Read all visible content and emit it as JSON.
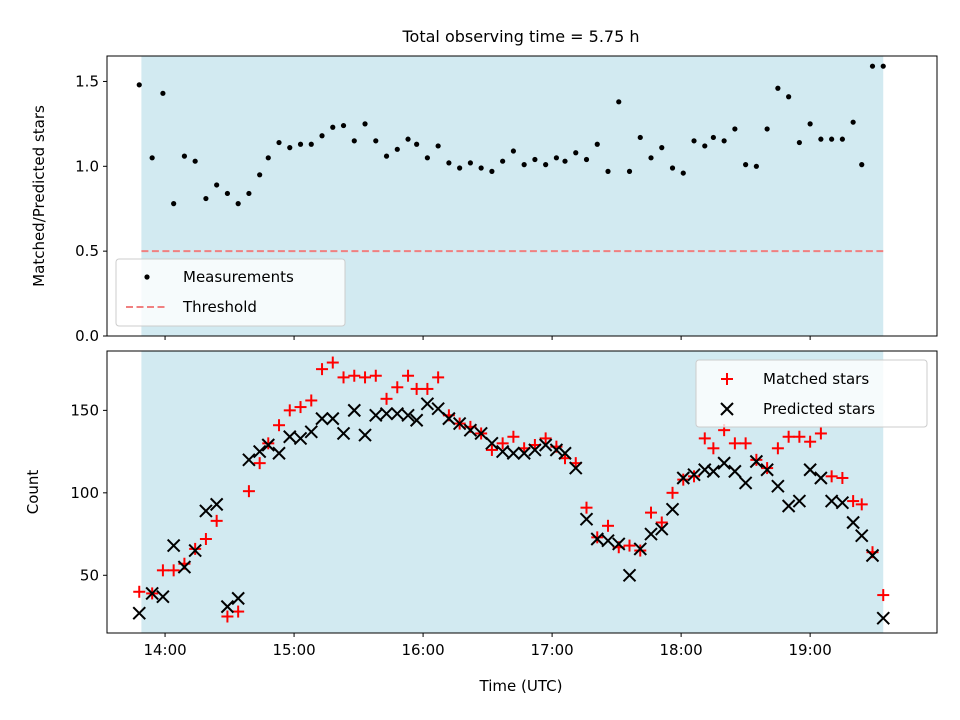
{
  "figure_title": "Total observing time = 5.75 h",
  "chart_data": [
    {
      "type": "scatter",
      "title": "Total observing time = 5.75 h",
      "ylabel": "Matched/Predicted stars",
      "xlabel": "",
      "ylim": [
        0,
        1.65
      ],
      "yticks": [
        0.0,
        0.5,
        1.0,
        1.5
      ],
      "ytick_labels": [
        "0.0",
        "0.5",
        "1.0",
        "1.5"
      ],
      "observing_window": [
        "13:49",
        "19:34"
      ],
      "legend": {
        "placement": "lower-left",
        "entries": [
          "Measurements",
          "Threshold"
        ]
      },
      "threshold": {
        "name": "Threshold",
        "value": 0.5,
        "color": "#f08080",
        "style": "dashed"
      },
      "series": [
        {
          "name": "Measurements",
          "color": "#000000",
          "x": [
            "13:48",
            "13:54",
            "13:59",
            "14:04",
            "14:09",
            "14:14",
            "14:19",
            "14:24",
            "14:29",
            "14:34",
            "14:39",
            "14:44",
            "14:48",
            "14:53",
            "14:58",
            "15:03",
            "15:08",
            "15:13",
            "15:18",
            "15:23",
            "15:28",
            "15:33",
            "15:38",
            "15:43",
            "15:48",
            "15:53",
            "15:57",
            "16:02",
            "16:07",
            "16:12",
            "16:17",
            "16:22",
            "16:27",
            "16:32",
            "16:37",
            "16:42",
            "16:47",
            "16:52",
            "16:57",
            "17:02",
            "17:06",
            "17:11",
            "17:16",
            "17:21",
            "17:26",
            "17:31",
            "17:36",
            "17:41",
            "17:46",
            "17:51",
            "17:56",
            "18:01",
            "18:06",
            "18:11",
            "18:15",
            "18:20",
            "18:25",
            "18:30",
            "18:35",
            "18:40",
            "18:45",
            "18:50",
            "18:55",
            "19:00",
            "19:05",
            "19:10",
            "19:15",
            "19:20",
            "19:24",
            "19:29",
            "19:34"
          ],
          "y": [
            1.48,
            1.05,
            1.43,
            0.78,
            1.06,
            1.03,
            0.81,
            0.89,
            0.84,
            0.78,
            0.84,
            0.95,
            1.05,
            1.14,
            1.11,
            1.13,
            1.13,
            1.18,
            1.23,
            1.24,
            1.15,
            1.25,
            1.15,
            1.06,
            1.1,
            1.16,
            1.13,
            1.05,
            1.12,
            1.02,
            0.99,
            1.02,
            0.99,
            0.97,
            1.03,
            1.09,
            1.01,
            1.04,
            1.01,
            1.05,
            1.03,
            1.08,
            1.04,
            1.13,
            0.97,
            1.38,
            0.97,
            1.17,
            1.05,
            1.11,
            0.99,
            0.96,
            1.15,
            1.12,
            1.17,
            1.15,
            1.22,
            1.01,
            1.0,
            1.22,
            1.46,
            1.41,
            1.14,
            1.25,
            1.16,
            1.16,
            1.16,
            1.26,
            1.01,
            1.59,
            1.59
          ]
        }
      ]
    },
    {
      "type": "scatter",
      "title": "",
      "ylabel": "Count",
      "xlabel": "Time (UTC)",
      "xlim": [
        "13:33",
        "19:59"
      ],
      "xticks": [
        "14:00",
        "15:00",
        "16:00",
        "17:00",
        "18:00",
        "19:00"
      ],
      "ylim": [
        15,
        186
      ],
      "yticks": [
        50,
        100,
        150
      ],
      "ytick_labels": [
        "50",
        "100",
        "150"
      ],
      "observing_window": [
        "13:49",
        "19:34"
      ],
      "legend": {
        "placement": "top-right",
        "entries": [
          "Matched stars",
          "Predicted stars"
        ]
      },
      "series": [
        {
          "name": "Matched stars",
          "marker": "plus",
          "color": "#ff0000",
          "x": [
            "13:48",
            "13:54",
            "13:59",
            "14:04",
            "14:09",
            "14:14",
            "14:19",
            "14:24",
            "14:29",
            "14:34",
            "14:39",
            "14:44",
            "14:48",
            "14:53",
            "14:58",
            "15:03",
            "15:08",
            "15:13",
            "15:18",
            "15:23",
            "15:28",
            "15:33",
            "15:38",
            "15:43",
            "15:48",
            "15:53",
            "15:57",
            "16:02",
            "16:07",
            "16:12",
            "16:17",
            "16:22",
            "16:27",
            "16:32",
            "16:37",
            "16:42",
            "16:47",
            "16:52",
            "16:57",
            "17:02",
            "17:06",
            "17:11",
            "17:16",
            "17:21",
            "17:26",
            "17:31",
            "17:36",
            "17:41",
            "17:46",
            "17:51",
            "17:56",
            "18:01",
            "18:06",
            "18:11",
            "18:15",
            "18:20",
            "18:25",
            "18:30",
            "18:35",
            "18:40",
            "18:45",
            "18:50",
            "18:55",
            "19:00",
            "19:05",
            "19:10",
            "19:15",
            "19:20",
            "19:24",
            "19:29",
            "19:34"
          ],
          "y": [
            40,
            39,
            53,
            53,
            57,
            66,
            72,
            83,
            25,
            28,
            101,
            118,
            130,
            141,
            150,
            152,
            156,
            175,
            179,
            170,
            171,
            170,
            171,
            157,
            164,
            171,
            163,
            163,
            170,
            147,
            142,
            140,
            136,
            126,
            130,
            134,
            127,
            129,
            133,
            128,
            121,
            118,
            91,
            73,
            80,
            67,
            68,
            65,
            88,
            82,
            100,
            108,
            110,
            133,
            127,
            138,
            130,
            130,
            120,
            115,
            127,
            134,
            134,
            131,
            136,
            110,
            109,
            95,
            93,
            64,
            38
          ]
        },
        {
          "name": "Predicted stars",
          "marker": "x",
          "color": "#000000",
          "x": [
            "13:48",
            "13:54",
            "13:59",
            "14:04",
            "14:09",
            "14:14",
            "14:19",
            "14:24",
            "14:29",
            "14:34",
            "14:39",
            "14:44",
            "14:48",
            "14:53",
            "14:58",
            "15:03",
            "15:08",
            "15:13",
            "15:18",
            "15:23",
            "15:28",
            "15:33",
            "15:38",
            "15:43",
            "15:48",
            "15:53",
            "15:57",
            "16:02",
            "16:07",
            "16:12",
            "16:17",
            "16:22",
            "16:27",
            "16:32",
            "16:37",
            "16:42",
            "16:47",
            "16:52",
            "16:57",
            "17:02",
            "17:06",
            "17:11",
            "17:16",
            "17:21",
            "17:26",
            "17:31",
            "17:36",
            "17:41",
            "17:46",
            "17:51",
            "17:56",
            "18:01",
            "18:06",
            "18:11",
            "18:15",
            "18:20",
            "18:25",
            "18:30",
            "18:35",
            "18:40",
            "18:45",
            "18:50",
            "18:55",
            "19:00",
            "19:05",
            "19:10",
            "19:15",
            "19:20",
            "19:24",
            "19:29",
            "19:34"
          ],
          "y": [
            27,
            39,
            37,
            68,
            55,
            65,
            89,
            93,
            31,
            36,
            120,
            125,
            129,
            124,
            134,
            133,
            137,
            145,
            145,
            136,
            150,
            135,
            147,
            148,
            148,
            147,
            144,
            154,
            151,
            145,
            142,
            138,
            136,
            130,
            125,
            124,
            124,
            126,
            129,
            126,
            124,
            115,
            84,
            72,
            71,
            69,
            50,
            66,
            75,
            78,
            90,
            109,
            111,
            114,
            113,
            118,
            113,
            106,
            119,
            114,
            104,
            92,
            95,
            114,
            109,
            95,
            94,
            82,
            74,
            62,
            24
          ]
        }
      ]
    }
  ]
}
